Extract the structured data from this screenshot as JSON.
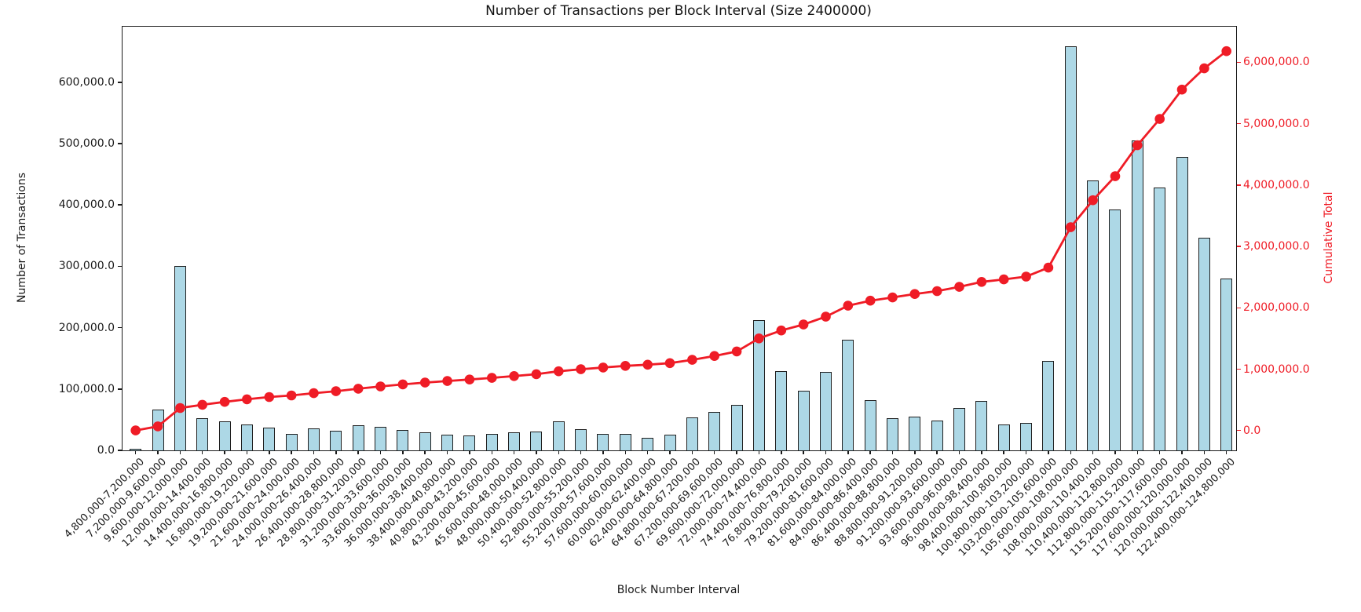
{
  "chart_data": {
    "type": "bar",
    "title": "Number of Transactions per Block Interval (Size 2400000)",
    "xlabel": "Block Number Interval",
    "grid": false,
    "legend": "none",
    "categories": [
      "4,800,000-7,200,000",
      "7,200,000-9,600,000",
      "9,600,000-12,000,000",
      "12,000,000-14,400,000",
      "14,400,000-16,800,000",
      "16,800,000-19,200,000",
      "19,200,000-21,600,000",
      "21,600,000-24,000,000",
      "24,000,000-26,400,000",
      "26,400,000-28,800,000",
      "28,800,000-31,200,000",
      "31,200,000-33,600,000",
      "33,600,000-36,000,000",
      "36,000,000-38,400,000",
      "38,400,000-40,800,000",
      "40,800,000-43,200,000",
      "43,200,000-45,600,000",
      "45,600,000-48,000,000",
      "48,000,000-50,400,000",
      "50,400,000-52,800,000",
      "52,800,000-55,200,000",
      "55,200,000-57,600,000",
      "57,600,000-60,000,000",
      "60,000,000-62,400,000",
      "62,400,000-64,800,000",
      "64,800,000-67,200,000",
      "67,200,000-69,600,000",
      "69,600,000-72,000,000",
      "72,000,000-74,400,000",
      "74,400,000-76,800,000",
      "76,800,000-79,200,000",
      "79,200,000-81,600,000",
      "81,600,000-84,000,000",
      "84,000,000-86,400,000",
      "86,400,000-88,800,000",
      "88,800,000-91,200,000",
      "91,200,000-93,600,000",
      "93,600,000-96,000,000",
      "96,000,000-98,400,000",
      "98,400,000-100,800,000",
      "100,800,000-103,200,000",
      "103,200,000-105,600,000",
      "105,600,000-108,000,000",
      "108,000,000-110,400,000",
      "110,400,000-112,800,000",
      "112,800,000-115,200,000",
      "115,200,000-117,600,000",
      "117,600,000-120,000,000",
      "120,000,000-122,400,000",
      "122,400,000-124,800,000"
    ],
    "series": [
      {
        "name": "Number of Transactions",
        "chart_type": "bar",
        "axis": "left",
        "fill_color": "#add8e6",
        "edge_color": "#1f1f1f",
        "values": [
          2000,
          66000,
          300000,
          52000,
          47000,
          42000,
          37000,
          26500,
          36000,
          32000,
          41000,
          38000,
          33000,
          29000,
          26000,
          24000,
          27000,
          29000,
          31000,
          47000,
          34000,
          27000,
          27000,
          20000,
          25000,
          53500,
          63000,
          74000,
          212000,
          129000,
          97500,
          127500,
          180000,
          82000,
          52000,
          55500,
          48000,
          69000,
          80000,
          42000,
          45000,
          146000,
          658000,
          440000,
          392000,
          505000,
          428000,
          478000,
          346000,
          280000
        ]
      },
      {
        "name": "Cumulative Total",
        "chart_type": "line",
        "axis": "right",
        "color": "#ef1c26",
        "marker": "circle",
        "values": [
          2000,
          68000,
          368000,
          420000,
          467000,
          509000,
          546000,
          572500,
          608500,
          640500,
          681500,
          719500,
          752500,
          781500,
          807500,
          831500,
          858500,
          887500,
          918500,
          965500,
          999500,
          1026500,
          1053500,
          1073500,
          1098500,
          1152000,
          1215000,
          1289000,
          1501000,
          1630000,
          1727500,
          1855000,
          2035000,
          2117000,
          2169000,
          2224500,
          2272500,
          2341500,
          2421500,
          2463500,
          2508500,
          2654500,
          3312500,
          3752500,
          4144500,
          4649500,
          5077500,
          5555500,
          5901500,
          6181500
        ]
      }
    ],
    "left_axis": {
      "label": "Number of Transactions",
      "color": "#1a1a1a",
      "range": [
        0,
        690500
      ],
      "tick_values": [
        0,
        100000,
        200000,
        300000,
        400000,
        500000,
        600000
      ],
      "tick_labels": [
        "0.0",
        "100,000.0",
        "200,000.0",
        "300,000.0",
        "400,000.0",
        "500,000.0",
        "600,000.0"
      ]
    },
    "right_axis": {
      "label": "Cumulative Total",
      "color": "#ef1c26",
      "range": [
        -323000,
        6581000
      ],
      "tick_values": [
        0,
        1000000,
        2000000,
        3000000,
        4000000,
        5000000,
        6000000
      ],
      "tick_labels": [
        "0.0",
        "1,000,000.0",
        "2,000,000.0",
        "3,000,000.0",
        "4,000,000.0",
        "5,000,000.0",
        "6,000,000.0"
      ]
    }
  }
}
